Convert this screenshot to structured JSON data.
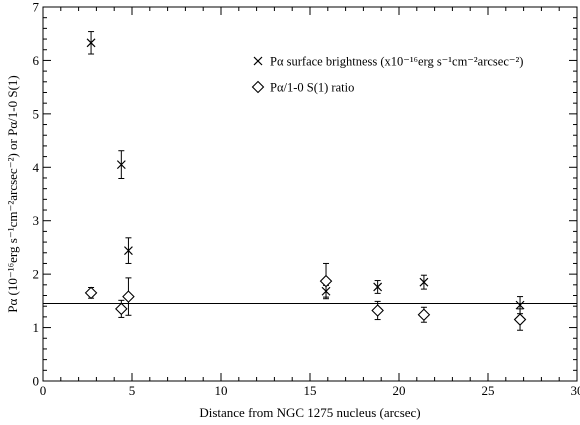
{
  "chart_data": {
    "type": "scatter",
    "title": "",
    "xlabel": "Distance from NGC 1275 nucleus (arcsec)",
    "ylabel": "Pα (10⁻¹⁶erg s⁻¹cm⁻²arcsec⁻²) or Pα/1-0 S(1)",
    "xlim": [
      0,
      30
    ],
    "ylim": [
      0,
      7
    ],
    "x_ticks": [
      "0",
      "5",
      "10",
      "15",
      "20",
      "25",
      "30"
    ],
    "y_ticks": [
      "0",
      "1",
      "2",
      "3",
      "4",
      "5",
      "6",
      "7"
    ],
    "grid": false,
    "legend_position": "top-right",
    "reference_line": {
      "y": 1.45
    },
    "series": [
      {
        "name": "Pα surface brightness (x10⁻¹⁶erg s⁻¹cm⁻²arcsec⁻²)",
        "marker": "x",
        "x": [
          2.7,
          4.4,
          4.8,
          15.9,
          18.8,
          21.4,
          26.8
        ],
        "y": [
          6.33,
          4.05,
          2.44,
          1.68,
          1.76,
          1.85,
          1.42
        ],
        "yerr": [
          0.21,
          0.26,
          0.24,
          0.11,
          0.12,
          0.13,
          0.16
        ]
      },
      {
        "name": "Pα/1-0 S(1) ratio",
        "marker": "diamond",
        "x": [
          2.7,
          4.4,
          4.8,
          15.9,
          18.8,
          21.4,
          26.8
        ],
        "y": [
          1.65,
          1.35,
          1.58,
          1.87,
          1.32,
          1.24,
          1.15
        ],
        "yerr": [
          0.1,
          0.16,
          0.35,
          0.33,
          0.17,
          0.14,
          0.2
        ]
      }
    ]
  }
}
